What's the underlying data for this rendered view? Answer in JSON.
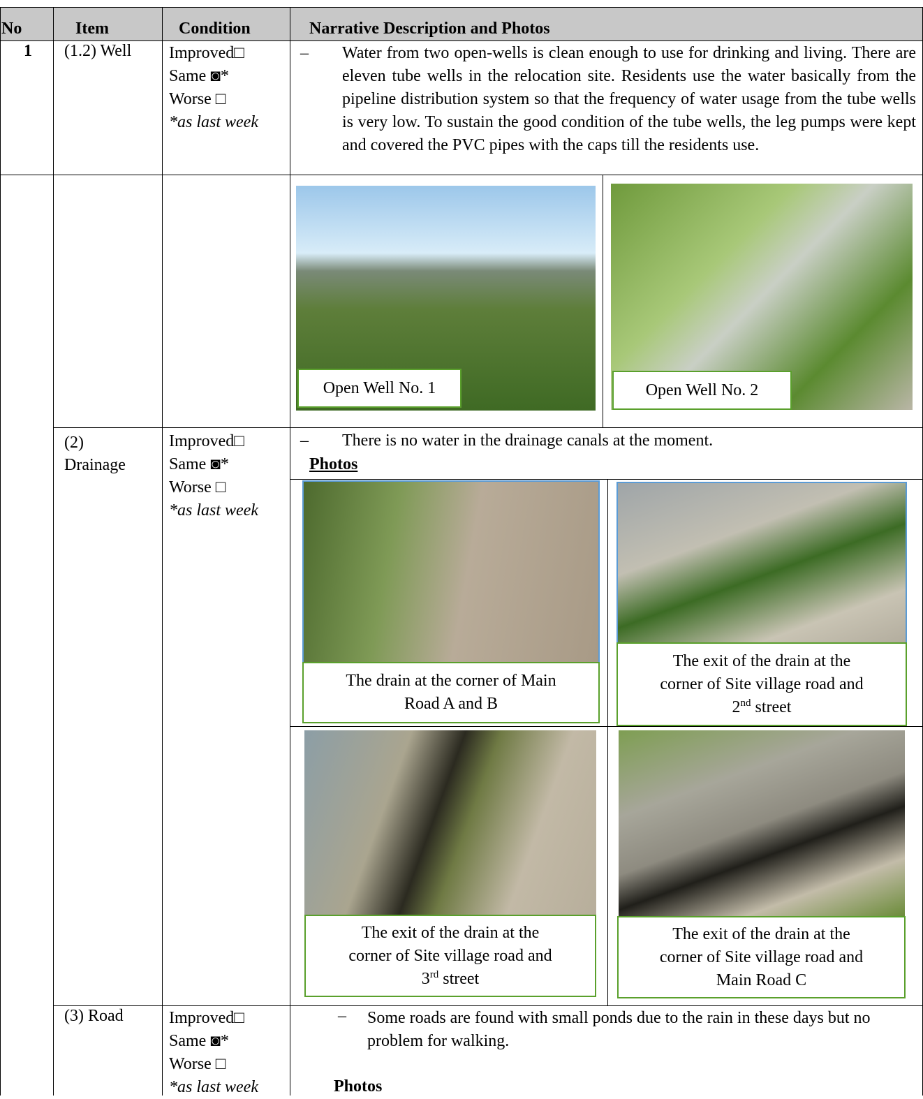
{
  "header": {
    "columns": [
      "No",
      "Item",
      "Condition",
      "Narrative Description and Photos"
    ]
  },
  "rows": [
    {
      "no": "1",
      "item": [
        "(1.2) Well"
      ],
      "condition": [
        "Improved□",
        "Same ◙*",
        "Worse □",
        "*as last week"
      ],
      "bullet": "–",
      "narrative": "Water from two open-wells is clean enough to use for drinking and living. There are eleven tube wells in the relocation site. Residents use the water basically from the pipeline distribution system so that the frequency of water usage from the tube wells is very low. To sustain the good condition of the tube wells, the leg pumps were kept and covered the PVC pipes with the caps till the residents use.",
      "photos": [
        {
          "caption": [
            "Open Well No. 1"
          ]
        },
        {
          "caption": [
            "Open Well No. 2"
          ]
        }
      ]
    },
    {
      "item": [
        "(2)",
        "Drainage"
      ],
      "condition": [
        "Improved□",
        "Same ◙*",
        "Worse □",
        "*as last week"
      ],
      "bullet": "–",
      "narrative": "There is no water in the drainage canals at the moment.",
      "photos_heading": "Photos",
      "photos": [
        {
          "caption": [
            "The drain at the corner of Main",
            "Road A and B"
          ]
        },
        {
          "caption": [
            "The exit of the drain at the",
            "corner of Site village road and",
            {
              "pre": "2",
              "sup": "nd",
              "post": " street"
            }
          ]
        },
        {
          "caption": [
            "The exit of the drain at the",
            "corner of Site village road and",
            {
              "pre": "3",
              "sup": "rd",
              "post": " street"
            }
          ]
        },
        {
          "caption": [
            "The exit of the drain at the",
            "corner of Site village road and",
            "Main Road C"
          ]
        }
      ]
    },
    {
      "item": [
        "(3) Road"
      ],
      "condition": [
        "Improved□",
        "Same ◙*",
        "Worse □",
        "*as last week"
      ],
      "bullet": "–",
      "narrative": "Some roads are found with small ponds due to the rain in these days but no problem for walking.",
      "photos_heading": "Photos"
    }
  ]
}
